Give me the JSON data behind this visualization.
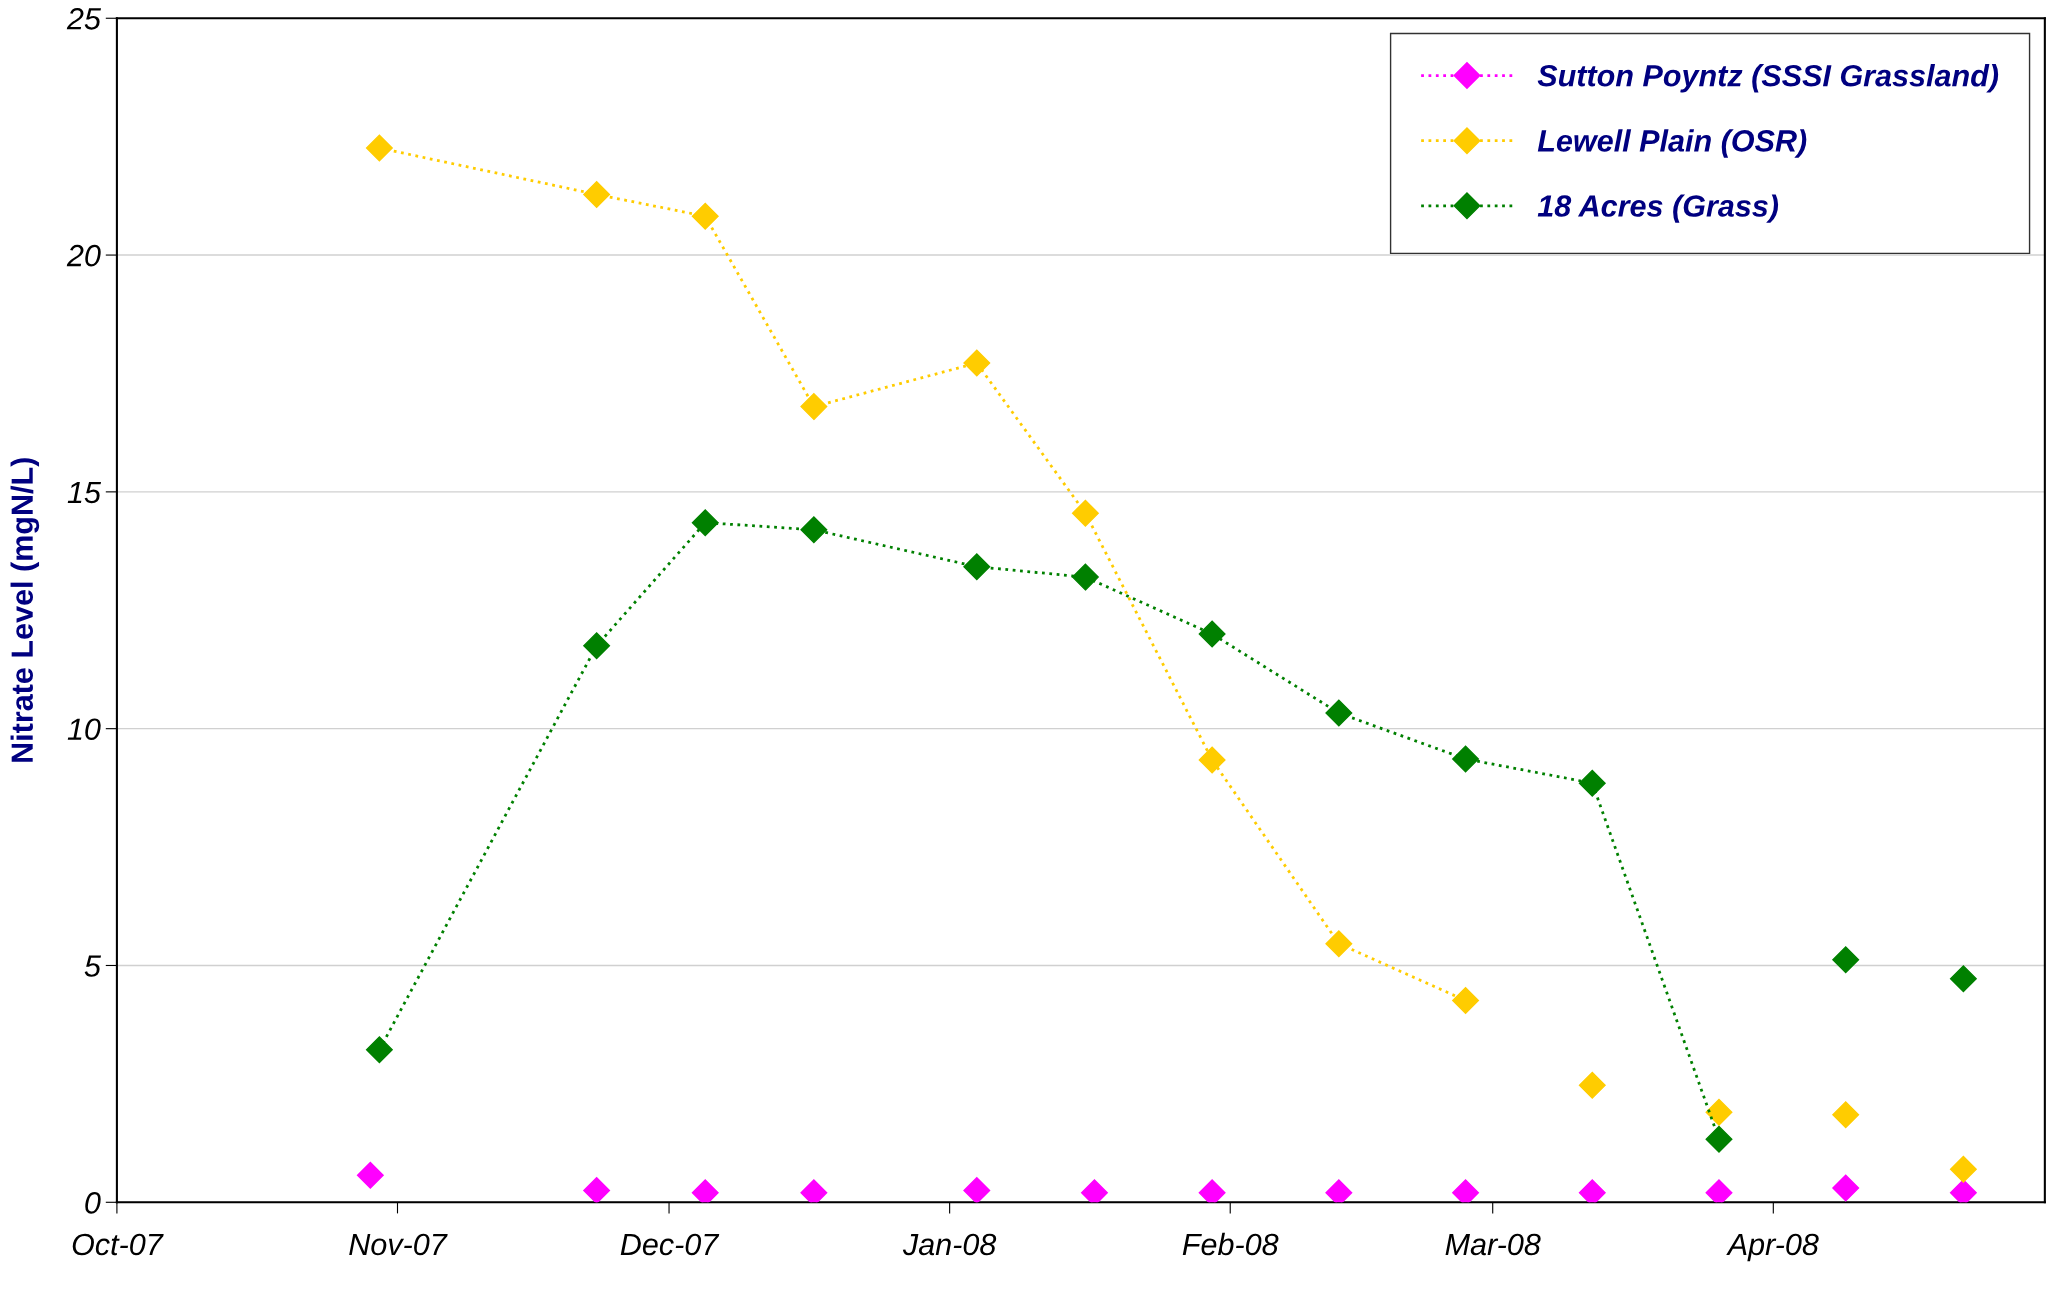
{
  "chart_data": {
    "type": "line",
    "ylabel": "Nitrate Level (mgN/L)",
    "xlim": [
      "2007-10-01",
      "2008-05-01"
    ],
    "xticks": [
      {
        "value": "2007-10-01",
        "label": "Oct-07"
      },
      {
        "value": "2007-11-01",
        "label": "Nov-07"
      },
      {
        "value": "2007-12-01",
        "label": "Dec-07"
      },
      {
        "value": "2008-01-01",
        "label": "Jan-08"
      },
      {
        "value": "2008-02-01",
        "label": "Feb-08"
      },
      {
        "value": "2008-03-01",
        "label": "Mar-08"
      },
      {
        "value": "2008-04-01",
        "label": "Apr-08"
      }
    ],
    "ylim": [
      0,
      25
    ],
    "yticks": [
      0,
      5,
      10,
      15,
      20,
      25
    ],
    "grid": "y",
    "legend": "top right",
    "marker": "diamond",
    "line_style": "dotted",
    "series": [
      {
        "name": "Sutton Poyntz (SSSI Grassland)",
        "type": "scatter",
        "color": "#ff00ff",
        "x": [
          "2007-10-29",
          "2007-11-23",
          "2007-12-05",
          "2007-12-17",
          "2008-01-04",
          "2008-01-17",
          "2008-01-30",
          "2008-02-13",
          "2008-02-27",
          "2008-03-12",
          "2008-03-26",
          "2008-04-09",
          "2008-04-22"
        ],
        "values": [
          0.57,
          0.25,
          0.2,
          0.2,
          0.25,
          0.2,
          0.2,
          0.2,
          0.2,
          0.2,
          0.2,
          0.3,
          0.2
        ]
      },
      {
        "name": "Lewell Plain (OSR)",
        "color": "#ffcc00",
        "x": [
          "2007-10-30",
          "2007-11-23",
          "2007-12-05",
          "2007-12-17",
          "2008-01-04",
          "2008-01-16",
          "2008-01-30",
          "2008-02-13",
          "2008-02-27"
        ],
        "values": [
          22.26,
          21.28,
          20.82,
          16.8,
          17.72,
          14.55,
          9.34,
          5.46,
          4.26
        ]
      },
      {
        "type": "scatter",
        "color": "#ffcc00",
        "x": [
          "2008-03-12",
          "2008-03-26",
          "2008-04-09",
          "2008-04-22"
        ],
        "values": [
          2.47,
          1.9,
          1.85,
          0.7
        ]
      },
      {
        "name": "18 Acres (Grass)",
        "color": "#008000",
        "x": [
          "2007-10-30",
          "2007-11-23",
          "2007-12-05",
          "2007-12-17",
          "2008-01-04",
          "2008-01-16",
          "2008-01-30",
          "2008-02-13",
          "2008-02-27",
          "2008-03-12",
          "2008-03-26"
        ],
        "values": [
          3.22,
          11.75,
          14.35,
          14.2,
          13.42,
          13.2,
          12.0,
          10.33,
          9.36,
          8.85,
          1.33
        ]
      },
      {
        "type": "scatter",
        "color": "#008000",
        "x": [
          "2008-04-09",
          "2008-04-22"
        ],
        "values": [
          5.12,
          4.72
        ]
      }
    ]
  }
}
